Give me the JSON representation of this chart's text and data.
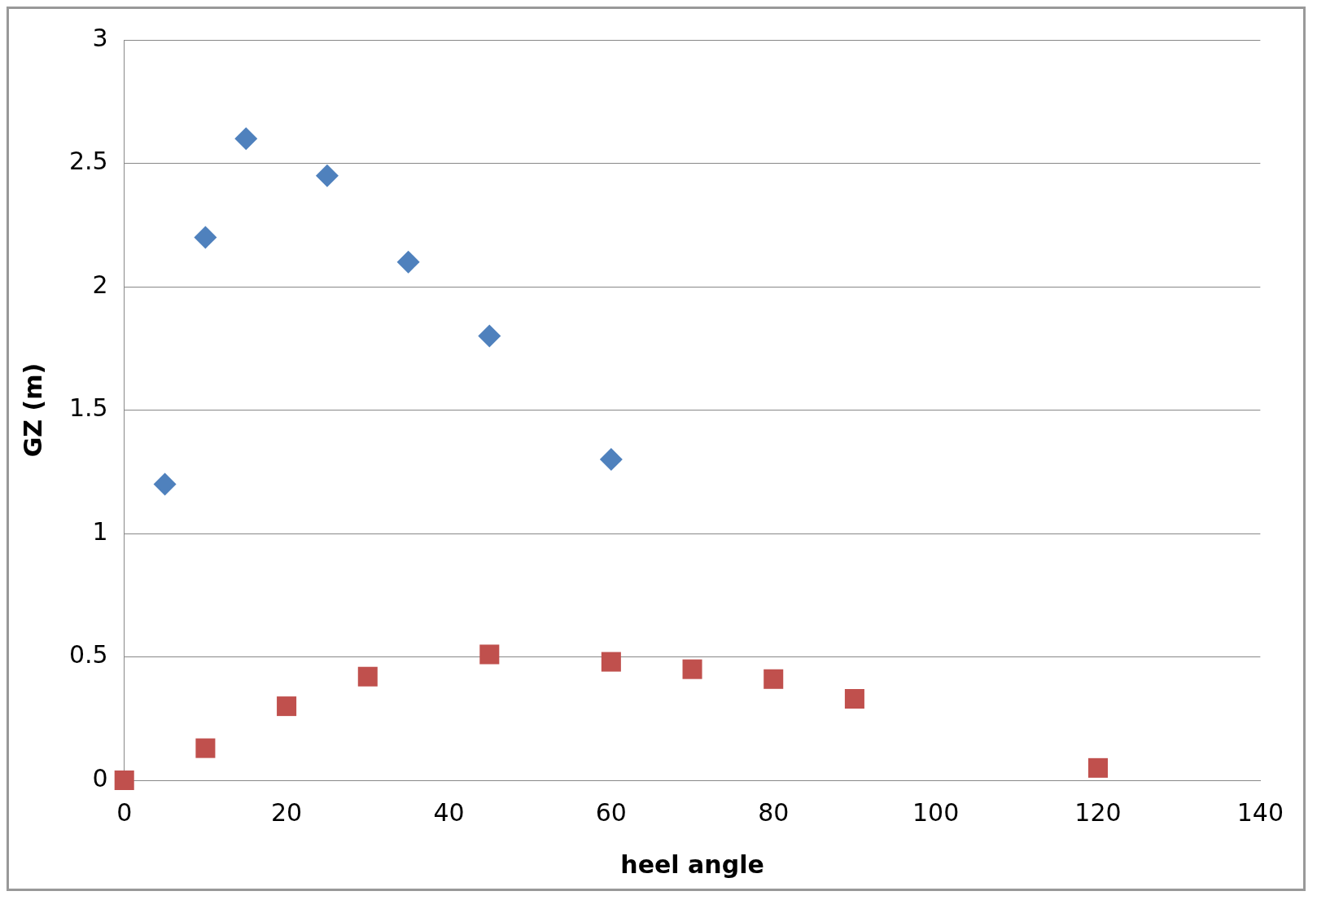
{
  "chart_data": {
    "type": "scatter",
    "xlabel": "heel angle",
    "ylabel": "GZ (m)",
    "xlim": [
      0,
      140
    ],
    "xticks": [
      0,
      20,
      40,
      60,
      80,
      100,
      120,
      140
    ],
    "ylim": [
      0,
      3
    ],
    "yticks": [
      0,
      0.5,
      1,
      1.5,
      2,
      2.5,
      3
    ],
    "grid": "y",
    "legend": false,
    "series": [
      {
        "color": "#4f81bd",
        "marker": "diamond",
        "x": [
          5,
          10,
          15,
          25,
          35,
          45,
          60
        ],
        "values": [
          1.2,
          2.2,
          2.6,
          2.45,
          2.1,
          1.8,
          1.3
        ]
      },
      {
        "color": "#c0504d",
        "marker": "square",
        "x": [
          0,
          10,
          20,
          30,
          45,
          60,
          70,
          80,
          90,
          120
        ],
        "values": [
          0,
          0.13,
          0.3,
          0.42,
          0.51,
          0.48,
          0.45,
          0.41,
          0.33,
          0.05
        ]
      }
    ]
  }
}
